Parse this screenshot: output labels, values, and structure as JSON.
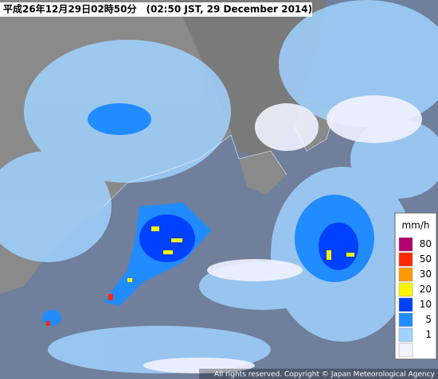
{
  "header": {
    "title": "平成26年12月29日02時50分　(02:50 JST, 29 December 2014)"
  },
  "legend": {
    "title": "mm/h",
    "items": [
      {
        "value": 80,
        "color": "#b4006e"
      },
      {
        "value": 50,
        "color": "#ff2800"
      },
      {
        "value": 30,
        "color": "#ff9900"
      },
      {
        "value": 20,
        "color": "#faf500"
      },
      {
        "value": 10,
        "color": "#0041ff"
      },
      {
        "value": 5,
        "color": "#218cff"
      },
      {
        "value": 1,
        "color": "#a0d2ff"
      },
      {
        "value": null,
        "color": "#f2f2ff"
      }
    ]
  },
  "footer": {
    "copyright": "All rights reserved. Copyright © Japan Meteorological Agency"
  }
}
